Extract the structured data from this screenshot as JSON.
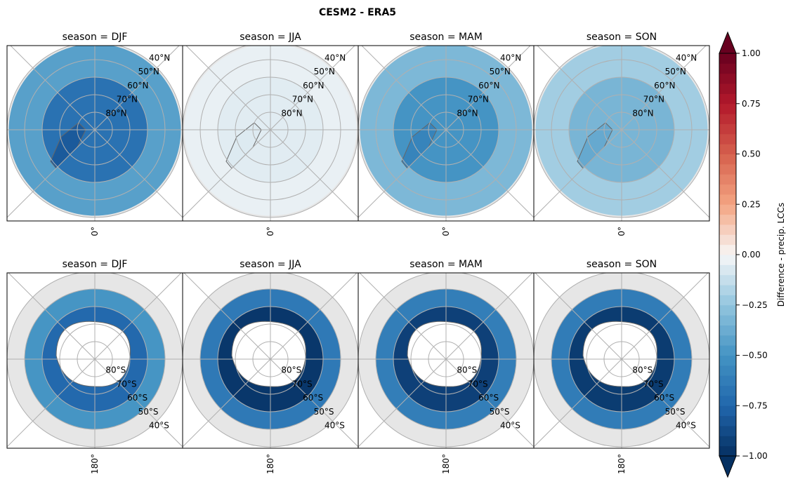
{
  "chart_data": {
    "type": "heatmap",
    "title": "CESM2 - ERA5",
    "panel_title_prefix": "season = ",
    "rows": [
      {
        "hemisphere": "north",
        "lat_labels": [
          "40°N",
          "50°N",
          "60°N",
          "70°N",
          "80°N"
        ],
        "lat_circles": [
          40,
          50,
          60,
          70,
          80
        ],
        "lon_label": "0°",
        "panels": [
          {
            "season": "DJF",
            "mean_difference": -0.62
          },
          {
            "season": "JJA",
            "mean_difference": -0.05
          },
          {
            "season": "MAM",
            "mean_difference": -0.45
          },
          {
            "season": "SON",
            "mean_difference": -0.3
          }
        ]
      },
      {
        "hemisphere": "south",
        "lat_labels": [
          "40°S",
          "50°S",
          "60°S",
          "70°S",
          "80°S"
        ],
        "lat_circles": [
          40,
          50,
          60,
          70,
          80
        ],
        "lon_label": "180°",
        "panels": [
          {
            "season": "DJF",
            "mean_difference": -0.7
          },
          {
            "season": "JJA",
            "mean_difference": -0.92
          },
          {
            "season": "MAM",
            "mean_difference": -0.88
          },
          {
            "season": "SON",
            "mean_difference": -0.9
          }
        ]
      }
    ],
    "colorbar": {
      "label": "Difference - precip. LCCs",
      "range": [
        -1.0,
        1.0
      ],
      "ticks": [
        "-1.00",
        "-0.75",
        "-0.50",
        "-0.25",
        "0.00",
        "0.25",
        "0.50",
        "0.75",
        "1.00"
      ],
      "extend": "both",
      "colormap": "RdBu_r"
    },
    "colors": {
      "no_data": "#e6e6e6",
      "grid": "#b0b0b0",
      "coast": "#666666",
      "land_zero": "#ffffff"
    }
  }
}
